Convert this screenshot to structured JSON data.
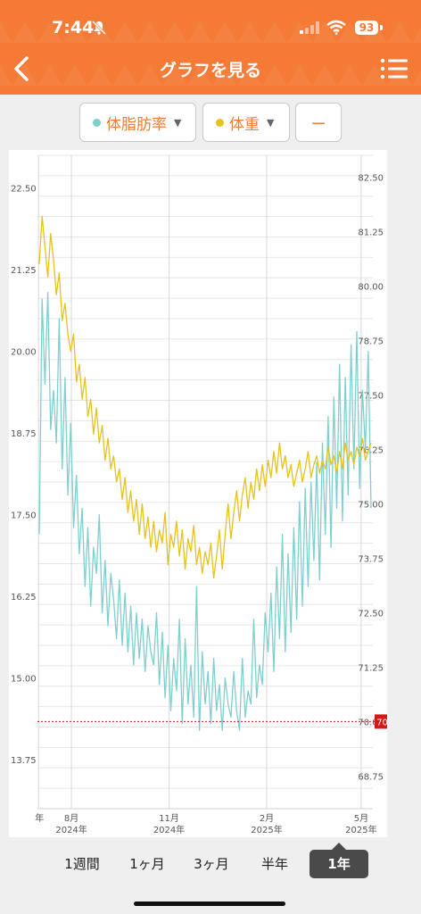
{
  "status_bar": {
    "time": "7:44",
    "battery": "93"
  },
  "header": {
    "title": "グラフを見る"
  },
  "filters": [
    {
      "label": "体脂肪率",
      "dot_color": "#7fcfcf"
    },
    {
      "label": "体重",
      "dot_color": "#e6c21c"
    },
    {
      "label": "ー"
    }
  ],
  "tabs": [
    "1週間",
    "1ヶ月",
    "3ヶ月",
    "半年",
    "1年"
  ],
  "active_tab": "1年",
  "colors": {
    "accent": "#f47a36",
    "body_fat": "#7fcfcf",
    "weight": "#e6c21c",
    "target": "#d11a1a"
  },
  "chart_data": {
    "type": "line",
    "left_axis": {
      "ylim": [
        13.0,
        23.0
      ],
      "ticks": [
        "13.75",
        "15.00",
        "16.25",
        "17.50",
        "18.75",
        "20.00",
        "21.25",
        "22.50"
      ]
    },
    "right_axis": {
      "ylim": [
        68.0,
        83.0
      ],
      "ticks": [
        "68.75",
        "70.00",
        "71.25",
        "72.50",
        "73.75",
        "75.00",
        "76.25",
        "77.50",
        "78.75",
        "80.00",
        "81.25",
        "82.50"
      ]
    },
    "x_ticks": [
      {
        "date": "2024-07-01",
        "label": "年",
        "sublabel": ""
      },
      {
        "date": "2024-08-01",
        "label": "8月",
        "sublabel": "2024年"
      },
      {
        "date": "2024-11-01",
        "label": "11月",
        "sublabel": "2024年"
      },
      {
        "date": "2025-02-01",
        "label": "2月",
        "sublabel": "2025年"
      },
      {
        "date": "2025-05-01",
        "label": "5月",
        "sublabel": "2025年"
      }
    ],
    "target_line": {
      "value": 70.0,
      "label": "70.00",
      "axis": "right"
    },
    "series": [
      {
        "name": "体脂肪率",
        "axis": "left",
        "color": "#7fcfcf",
        "values": [
          17.2,
          20.8,
          19.5,
          20.9,
          18.8,
          19.4,
          18.6,
          20.5,
          18.2,
          19.6,
          17.8,
          18.9,
          17.3,
          18.1,
          16.9,
          17.6,
          16.4,
          17.3,
          16.1,
          17.0,
          16.6,
          17.5,
          16.0,
          16.8,
          15.8,
          16.6,
          16.2,
          15.6,
          16.5,
          15.5,
          16.3,
          15.4,
          16.1,
          15.2,
          16.0,
          15.3,
          15.9,
          15.1,
          15.8,
          15.4,
          15.2,
          16.0,
          14.9,
          15.7,
          14.7,
          15.5,
          14.5,
          15.3,
          14.8,
          15.9,
          14.3,
          15.6,
          14.6,
          15.2,
          14.4,
          16.4,
          14.2,
          15.4,
          14.6,
          15.1,
          14.3,
          15.3,
          14.5,
          14.9,
          14.2,
          15.0,
          14.6,
          14.4,
          15.1,
          14.5,
          14.2,
          15.3,
          14.4,
          14.8,
          14.6,
          15.9,
          14.7,
          15.2,
          14.9,
          16.0,
          15.4,
          16.3,
          15.1,
          16.7,
          15.6,
          17.2,
          15.4,
          16.9,
          15.7,
          17.3,
          15.9,
          17.7,
          16.1,
          17.9,
          16.4,
          18.0,
          16.8,
          18.3,
          16.5,
          18.6,
          17.2,
          19.0,
          17.0,
          19.3,
          17.6,
          19.8,
          17.4,
          19.6,
          17.8,
          20.1,
          18.2,
          20.3,
          17.9,
          19.4,
          18.5,
          20.0,
          17.6
        ]
      },
      {
        "name": "体重",
        "axis": "right",
        "color": "#e6c21c",
        "values": [
          80.5,
          81.6,
          80.9,
          80.2,
          81.2,
          80.6,
          79.8,
          80.3,
          79.2,
          79.6,
          78.9,
          78.5,
          78.9,
          77.8,
          78.2,
          77.4,
          77.9,
          77.0,
          77.4,
          76.6,
          77.2,
          76.4,
          76.8,
          76.0,
          76.5,
          75.8,
          76.1,
          75.5,
          75.8,
          75.1,
          75.6,
          74.8,
          75.3,
          74.6,
          75.1,
          74.3,
          75.0,
          74.2,
          74.7,
          74.0,
          74.6,
          73.9,
          74.4,
          74.1,
          74.8,
          73.6,
          74.3,
          74.0,
          74.6,
          73.8,
          74.4,
          73.5,
          74.2,
          73.9,
          74.5,
          73.6,
          74.0,
          73.4,
          73.9,
          73.6,
          74.1,
          73.3,
          73.8,
          74.4,
          73.5,
          74.3,
          75.0,
          74.2,
          74.8,
          75.3,
          74.6,
          75.2,
          75.6,
          74.9,
          75.5,
          75.1,
          75.8,
          75.3,
          75.9,
          75.4,
          76.0,
          75.6,
          76.2,
          75.7,
          76.4,
          75.8,
          76.1,
          75.6,
          75.9,
          75.4,
          75.7,
          76.0,
          75.5,
          75.8,
          76.2,
          75.6,
          75.9,
          76.1,
          75.7,
          76.0,
          75.8,
          76.3,
          75.9,
          76.1,
          75.7,
          76.2,
          75.8,
          76.4,
          76.0,
          76.2,
          75.9,
          76.3,
          76.1,
          76.5,
          76.0,
          76.2,
          76.4
        ]
      }
    ]
  }
}
